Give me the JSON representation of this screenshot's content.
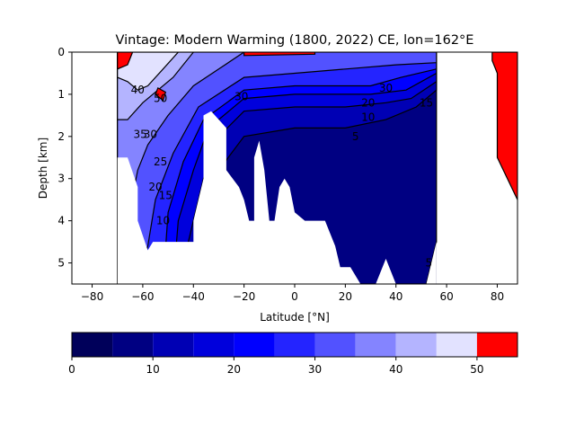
{
  "chart_data": {
    "type": "contourf",
    "title": "Vintage: Modern Warming (1800, 2022) CE, lon=162°E",
    "xlabel": "Latitude [°N]",
    "ylabel": "Depth [km]",
    "xlim": [
      -88,
      88
    ],
    "ylim": [
      5.5,
      0
    ],
    "xticks": [
      -80,
      -60,
      -40,
      -20,
      0,
      20,
      40,
      60,
      80
    ],
    "yticks": [
      0,
      1,
      2,
      3,
      4,
      5
    ],
    "colorbar": {
      "levels": [
        0,
        5,
        10,
        15,
        20,
        25,
        30,
        35,
        40,
        45,
        50,
        55
      ],
      "ticks": [
        0,
        10,
        20,
        30,
        40,
        50
      ],
      "colors": [
        "#00005a",
        "#000082",
        "#0000b4",
        "#0000dc",
        "#0000ff",
        "#2424ff",
        "#5252ff",
        "#8484ff",
        "#b4b4ff",
        "#e2e2ff",
        "#ff0000"
      ]
    },
    "bands": [
      {
        "level": 5,
        "points": [
          [
            -70,
            0
          ],
          [
            52,
            0
          ],
          [
            56,
            0.3
          ],
          [
            56,
            4.5
          ],
          [
            52,
            5.5
          ],
          [
            -70,
            5.5
          ]
        ]
      },
      {
        "level": 10,
        "points": [
          [
            -70,
            0
          ],
          [
            56,
            0
          ],
          [
            56,
            0.9
          ],
          [
            48,
            1.3
          ],
          [
            36,
            1.6
          ],
          [
            20,
            1.8
          ],
          [
            0,
            1.8
          ],
          [
            -20,
            2.0
          ],
          [
            -30,
            2.8
          ],
          [
            -35,
            4.0
          ],
          [
            -40,
            5.5
          ],
          [
            -70,
            5.5
          ]
        ]
      },
      {
        "level": 15,
        "points": [
          [
            -70,
            0
          ],
          [
            56,
            0
          ],
          [
            56,
            0.7
          ],
          [
            46,
            1.1
          ],
          [
            36,
            1.2
          ],
          [
            20,
            1.3
          ],
          [
            0,
            1.3
          ],
          [
            -20,
            1.4
          ],
          [
            -30,
            2.0
          ],
          [
            -36,
            3.0
          ],
          [
            -42,
            4.5
          ],
          [
            -44,
            5.5
          ],
          [
            -70,
            5.5
          ]
        ]
      },
      {
        "level": 20,
        "points": [
          [
            -70,
            0
          ],
          [
            56,
            0
          ],
          [
            56,
            0.5
          ],
          [
            44,
            0.9
          ],
          [
            30,
            1.0
          ],
          [
            20,
            1.0
          ],
          [
            0,
            1.0
          ],
          [
            -20,
            1.1
          ],
          [
            -34,
            1.8
          ],
          [
            -40,
            2.8
          ],
          [
            -46,
            4.0
          ],
          [
            -48,
            5.5
          ],
          [
            -70,
            5.5
          ]
        ]
      },
      {
        "level": 25,
        "points": [
          [
            -70,
            0
          ],
          [
            56,
            0
          ],
          [
            56,
            0.4
          ],
          [
            42,
            0.6
          ],
          [
            30,
            0.8
          ],
          [
            0,
            0.8
          ],
          [
            -20,
            0.9
          ],
          [
            -36,
            1.6
          ],
          [
            -44,
            2.6
          ],
          [
            -50,
            3.8
          ],
          [
            -52,
            5.5
          ],
          [
            -70,
            5.5
          ]
        ]
      },
      {
        "level": 30,
        "points": [
          [
            -70,
            0
          ],
          [
            56,
            0
          ],
          [
            56,
            0.25
          ],
          [
            40,
            0.3
          ],
          [
            20,
            0.4
          ],
          [
            0,
            0.5
          ],
          [
            -20,
            0.6
          ],
          [
            -38,
            1.3
          ],
          [
            -48,
            2.4
          ],
          [
            -55,
            3.5
          ],
          [
            -58,
            4.6
          ],
          [
            -62,
            5.5
          ],
          [
            -70,
            5.5
          ]
        ]
      },
      {
        "level": 35,
        "points": [
          [
            -70,
            0
          ],
          [
            -20,
            0
          ],
          [
            -30,
            0.4
          ],
          [
            -40,
            0.8
          ],
          [
            -50,
            1.5
          ],
          [
            -58,
            2.2
          ],
          [
            -62,
            2.8
          ],
          [
            -66,
            4.0
          ],
          [
            -70,
            4.0
          ]
        ]
      },
      {
        "level": 40,
        "points": [
          [
            -70,
            0
          ],
          [
            -40,
            0
          ],
          [
            -48,
            0.6
          ],
          [
            -60,
            1.2
          ],
          [
            -66,
            1.6
          ],
          [
            -70,
            1.6
          ]
        ]
      },
      {
        "level": 45,
        "points": [
          [
            -70,
            0
          ],
          [
            -46,
            0
          ],
          [
            -52,
            0.4
          ],
          [
            -58,
            0.8
          ],
          [
            -62,
            0.9
          ],
          [
            -66,
            0.7
          ],
          [
            -70,
            0.6
          ]
        ]
      },
      {
        "level": 50,
        "points": [
          [
            -54,
            0.85
          ],
          [
            -51,
            0.95
          ],
          [
            -52,
            1.15
          ],
          [
            -55,
            1.0
          ]
        ]
      },
      {
        "level": 50,
        "points": [
          [
            -70,
            0
          ],
          [
            -64,
            0
          ],
          [
            -66,
            0.3
          ],
          [
            -70,
            0.4
          ]
        ]
      },
      {
        "level": 50,
        "points": [
          [
            -20,
            0
          ],
          [
            8,
            0
          ],
          [
            8,
            0.05
          ],
          [
            -20,
            0.08
          ]
        ]
      },
      {
        "level": 50,
        "points": [
          [
            78,
            0
          ],
          [
            88,
            0
          ],
          [
            88,
            3.5
          ],
          [
            80,
            2.5
          ],
          [
            80,
            0.5
          ],
          [
            78,
            0.2
          ]
        ]
      }
    ],
    "masked": [
      {
        "points": [
          [
            -70,
            2.5
          ],
          [
            -66,
            2.5
          ],
          [
            -62,
            3.2
          ],
          [
            -62,
            4.0
          ],
          [
            -58,
            4.7
          ],
          [
            -56,
            4.5
          ],
          [
            -54,
            4.5
          ],
          [
            -40,
            4.5
          ],
          [
            -40,
            4.0
          ],
          [
            -36,
            3.0
          ],
          [
            -36,
            1.5
          ],
          [
            -33,
            1.4
          ],
          [
            -30,
            1.6
          ],
          [
            -27,
            1.8
          ],
          [
            -27,
            2.8
          ],
          [
            -22,
            3.2
          ],
          [
            -20,
            3.5
          ],
          [
            -18,
            4.0
          ],
          [
            -16,
            4.0
          ],
          [
            -16,
            2.5
          ],
          [
            -14,
            2.1
          ],
          [
            -12,
            2.8
          ],
          [
            -10,
            4.0
          ],
          [
            -8,
            4.0
          ],
          [
            -6,
            3.2
          ],
          [
            -4,
            3.0
          ],
          [
            -2,
            3.2
          ],
          [
            0,
            3.8
          ],
          [
            4,
            4.0
          ],
          [
            12,
            4.0
          ],
          [
            16,
            4.6
          ],
          [
            18,
            5.1
          ],
          [
            22,
            5.1
          ],
          [
            26,
            5.5
          ],
          [
            -70,
            5.5
          ]
        ]
      },
      {
        "points": [
          [
            32,
            5.5
          ],
          [
            36,
            4.9
          ],
          [
            40,
            5.5
          ]
        ]
      },
      {
        "points": [
          [
            52,
            5.5
          ],
          [
            56,
            4.5
          ],
          [
            56,
            5.5
          ]
        ]
      }
    ],
    "contours": [
      {
        "label": "50",
        "at": [
          -53,
          1.1
        ]
      },
      {
        "label": "40",
        "at": [
          -62,
          0.9
        ]
      },
      {
        "label": "35",
        "at": [
          -61,
          1.95
        ]
      },
      {
        "label": "30",
        "at": [
          -21,
          1.05
        ]
      },
      {
        "label": "30",
        "at": [
          -57,
          1.95
        ]
      },
      {
        "label": "25",
        "at": [
          -53,
          2.6
        ]
      },
      {
        "label": "20",
        "at": [
          -55,
          3.2
        ]
      },
      {
        "label": "15",
        "at": [
          -51,
          3.4
        ]
      },
      {
        "label": "10",
        "at": [
          -52,
          4.0
        ]
      },
      {
        "label": "30",
        "at": [
          36,
          0.85
        ]
      },
      {
        "label": "20",
        "at": [
          29,
          1.2
        ]
      },
      {
        "label": "10",
        "at": [
          29,
          1.55
        ]
      },
      {
        "label": "15",
        "at": [
          52,
          1.2
        ]
      },
      {
        "label": "5",
        "at": [
          24,
          2.0
        ]
      },
      {
        "label": "5",
        "at": [
          53,
          5.0
        ]
      }
    ]
  }
}
